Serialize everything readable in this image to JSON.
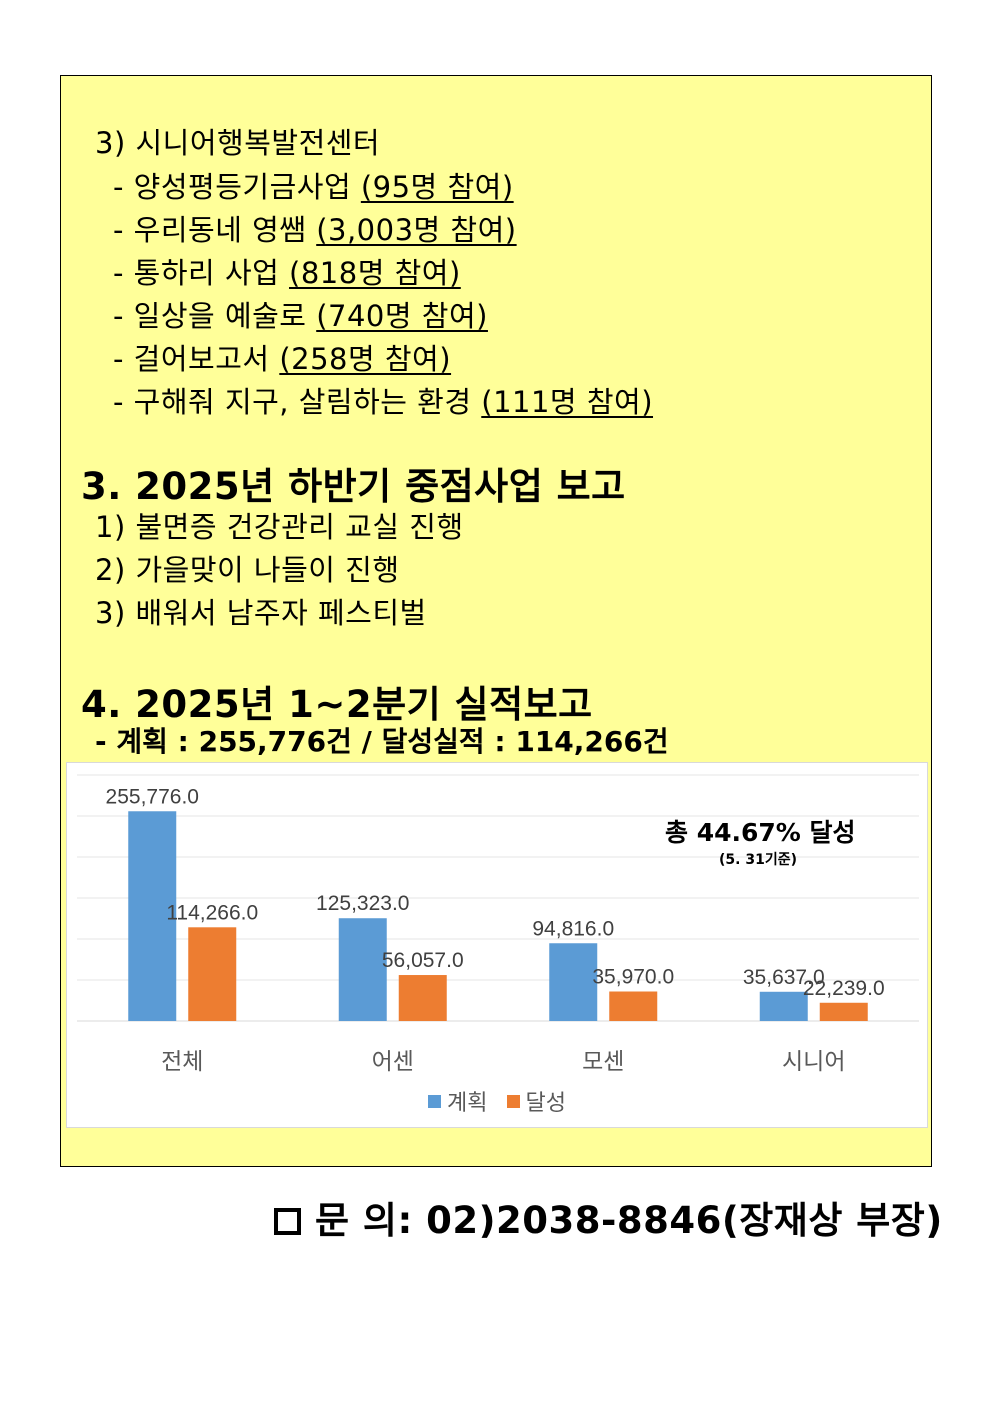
{
  "section2": {
    "item3_title": "3) 시니어행복발전센터",
    "programs": [
      {
        "name": "- 양성평등기금사업 ",
        "participants": "(95명 참여)"
      },
      {
        "name": "- 우리동네 영쌤 ",
        "participants": "(3,003명 참여)"
      },
      {
        "name": "- 통하리 사업 ",
        "participants": "(818명 참여)"
      },
      {
        "name": "- 일상을 예술로 ",
        "participants": "(740명 참여)"
      },
      {
        "name": "- 걸어보고서 ",
        "participants": "(258명 참여)"
      },
      {
        "name": "- 구해줘 지구, 살림하는 환경 ",
        "participants": "(111명 참여)"
      }
    ]
  },
  "section3": {
    "heading": "3. 2025년 하반기 중점사업 보고",
    "items": [
      "1) 불면증 건강관리 교실 진행",
      "2) 가을맞이 나들이 진행",
      "3) 배워서 남주자 페스티벌"
    ]
  },
  "section4": {
    "heading": "4. 2025년 1~2분기 실적보고",
    "summary": "- 계획 : 255,776건 / 달성실적 : 114,266건"
  },
  "callout": {
    "main": "총 44.67% 달성",
    "sub": "(5. 31기준)"
  },
  "contact": {
    "text": "문 의: 02)2038-8846(장재상 부장)"
  },
  "chart_data": {
    "type": "bar",
    "categories": [
      "전체",
      "어센",
      "모센",
      "시니어"
    ],
    "series": [
      {
        "name": "계획",
        "values": [
          255776.0,
          125323.0,
          94816.0,
          35637.0
        ],
        "labels": [
          "255,776.0",
          "125,323.0",
          "94,816.0",
          "35,637.0"
        ],
        "color": "#5b9bd5"
      },
      {
        "name": "달성",
        "values": [
          114266.0,
          56057.0,
          35970.0,
          22239.0
        ],
        "labels": [
          "114,266.0",
          "56,057.0",
          "35,970.0",
          "22,239.0"
        ],
        "color": "#ed7d31"
      }
    ],
    "ylim": [
      0,
      300000
    ],
    "grid": true,
    "legend": "bottom"
  }
}
